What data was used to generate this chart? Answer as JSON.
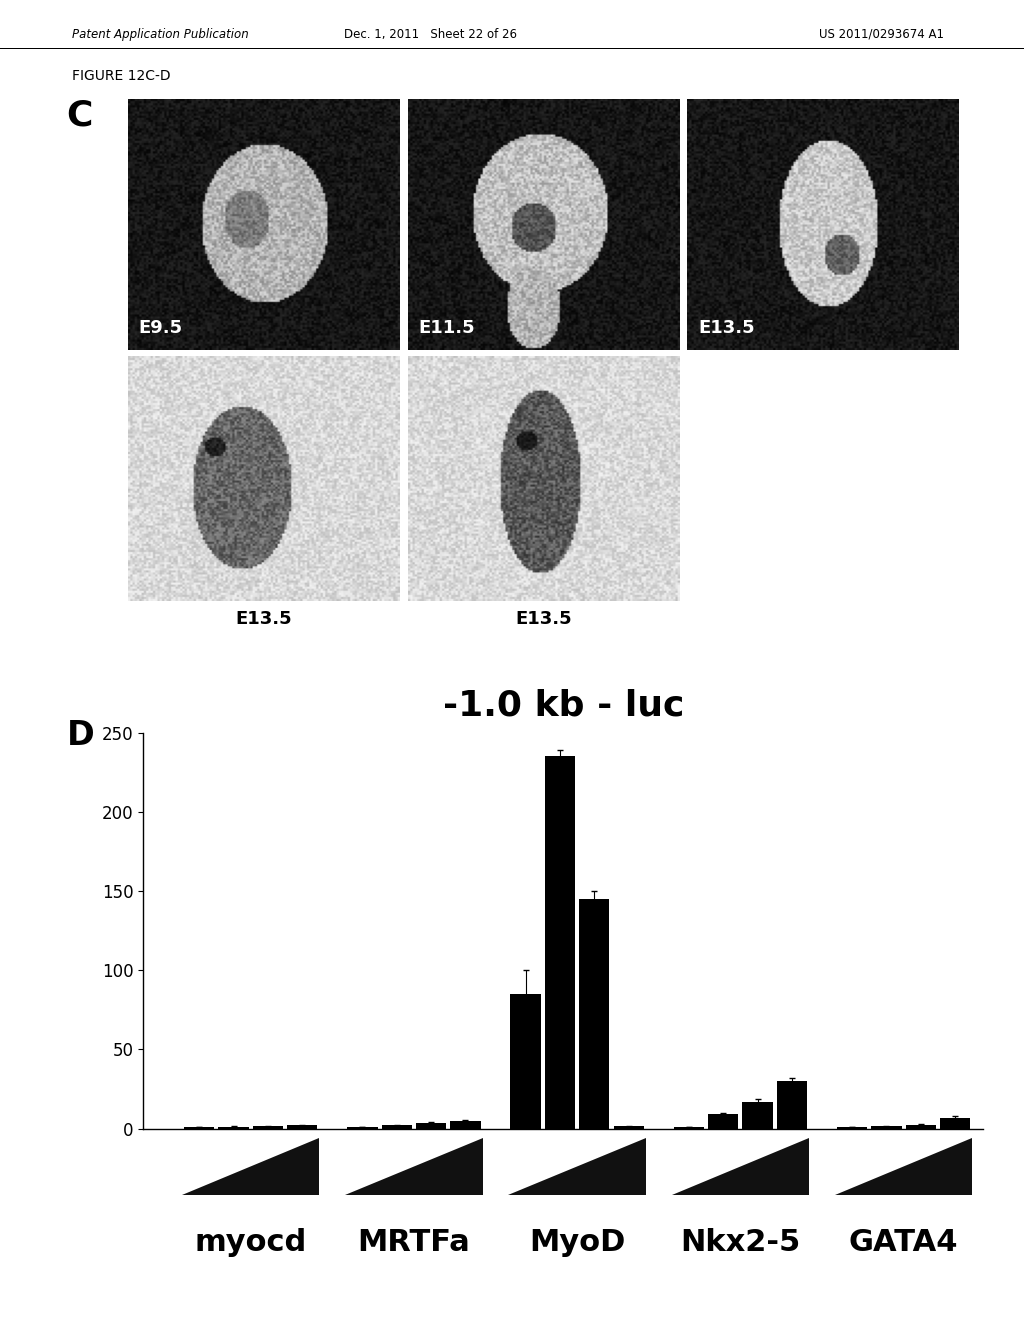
{
  "header_left": "Patent Application Publication",
  "header_mid": "Dec. 1, 2011   Sheet 22 of 26",
  "header_right": "US 2011/0293674 A1",
  "figure_label": "FIGURE 12C-D",
  "panel_c_label": "C",
  "panel_d_label": "D",
  "chart_title": "-1.0 kb - luc",
  "chart_title_fontsize": 26,
  "ylabel_ticks": [
    0,
    50,
    100,
    150,
    200,
    250
  ],
  "ylim": [
    0,
    250
  ],
  "groups": [
    "myocd",
    "MRTFa",
    "MyoD",
    "Nkx2-5",
    "GATA4"
  ],
  "group_xlabel_fontsize": 22,
  "bars_per_group": 4,
  "bar_values": [
    [
      1.0,
      1.2,
      1.5,
      2.0
    ],
    [
      1.0,
      2.0,
      3.5,
      5.0
    ],
    [
      85.0,
      235.0,
      145.0,
      1.5
    ],
    [
      1.0,
      9.0,
      17.0,
      30.0
    ],
    [
      1.0,
      1.5,
      2.5,
      7.0
    ]
  ],
  "bar_errors": [
    [
      0.3,
      0.3,
      0.3,
      0.3
    ],
    [
      0.3,
      0.5,
      0.8,
      0.5
    ],
    [
      15.0,
      4.0,
      5.0,
      0.3
    ],
    [
      0.3,
      1.0,
      1.5,
      2.0
    ],
    [
      0.3,
      0.3,
      0.3,
      0.8
    ]
  ],
  "bar_color": "#000000",
  "bar_width": 0.16,
  "background_color": "#ffffff",
  "tick_fontsize": 12,
  "image_labels_top": [
    "E9.5",
    "E11.5",
    "E13.5"
  ],
  "image_labels_bottom": [
    "E13.5",
    "E13.5"
  ],
  "triangle_color": "#111111",
  "mini_square_color": "#111111"
}
